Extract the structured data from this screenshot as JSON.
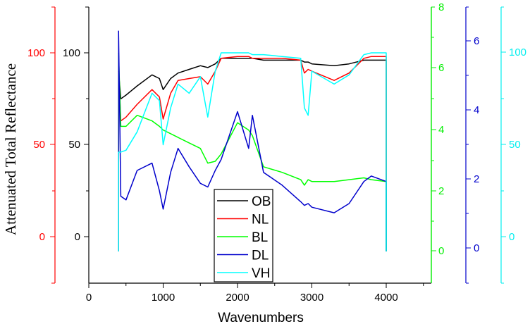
{
  "chart_data": {
    "type": "line",
    "title": "",
    "xlabel": "Wavenumbers",
    "ylabel": "Attenuated  Total Reflectance",
    "xlim": [
      0,
      4500
    ],
    "x_ticks": [
      0,
      1000,
      2000,
      3000,
      4000
    ],
    "grid": false,
    "legend_position": "lower center (inside plot)",
    "axes": [
      {
        "id": "black",
        "color": "#000000",
        "ticks": [
          0,
          50,
          100
        ],
        "ylim": [
          -25,
          125
        ]
      },
      {
        "id": "red",
        "color": "#ff0000",
        "ticks": [
          0,
          50,
          100
        ],
        "ylim": [
          -25,
          125
        ]
      },
      {
        "id": "green",
        "color": "#00ff00",
        "ticks": [
          0,
          2,
          4,
          6,
          8
        ],
        "ylim": [
          -0.7,
          8
        ]
      },
      {
        "id": "blue",
        "color": "#0000cc",
        "ticks": [
          0,
          2,
          4,
          6
        ],
        "ylim": [
          -0.7,
          7
        ]
      },
      {
        "id": "cyan",
        "color": "#00ffff",
        "ticks": [
          0,
          50,
          100
        ],
        "ylim": [
          -15,
          125
        ]
      }
    ],
    "x": [
      400,
      430,
      500,
      650,
      850,
      950,
      1000,
      1100,
      1200,
      1350,
      1500,
      1600,
      1700,
      1780,
      2000,
      2150,
      2200,
      2350,
      2600,
      2850,
      2900,
      2950,
      3000,
      3300,
      3500,
      3700,
      3800,
      4000
    ],
    "series": [
      {
        "name": "OB",
        "color": "#000000",
        "values": [
          90,
          75,
          77,
          82,
          88,
          86,
          80,
          86,
          89,
          91,
          93,
          92,
          94,
          97,
          97,
          97,
          97,
          96,
          96,
          96,
          95,
          95,
          94,
          93,
          94,
          96,
          96,
          96
        ]
      },
      {
        "name": "NL",
        "color": "#ff0000",
        "values": [
          90,
          63,
          65,
          72,
          80,
          76,
          64,
          78,
          85,
          86,
          87,
          83,
          90,
          97,
          98,
          98,
          97,
          97,
          97,
          96,
          89,
          91,
          90,
          85,
          89,
          97,
          98,
          98
        ]
      },
      {
        "name": "BL",
        "color": "#00ff00",
        "values": [
          100,
          60,
          60,
          66,
          63,
          60,
          58,
          56,
          54,
          51,
          48,
          40,
          41,
          45,
          62,
          58,
          55,
          38,
          35,
          31,
          28,
          31,
          30,
          30,
          31,
          32,
          31,
          30
        ]
      },
      {
        "name": "DL",
        "color": "#0000cc",
        "values": [
          112,
          22,
          20,
          36,
          40,
          25,
          15,
          35,
          48,
          38,
          29,
          27,
          36,
          42,
          68,
          48,
          66,
          35,
          28,
          19,
          17,
          18,
          16,
          13,
          18,
          30,
          33,
          30
        ]
      },
      {
        "name": "VH",
        "color": "#00ffff",
        "values": [
          46,
          46,
          47,
          57,
          78,
          74,
          50,
          70,
          83,
          78,
          87,
          65,
          90,
          100,
          100,
          100,
          99,
          99,
          98,
          97,
          70,
          66,
          90,
          83,
          88,
          99,
          100,
          100
        ]
      }
    ]
  },
  "legend": {
    "items": [
      {
        "label": "OB",
        "color": "#000000"
      },
      {
        "label": "NL",
        "color": "#ff0000"
      },
      {
        "label": "BL",
        "color": "#00ff00"
      },
      {
        "label": "DL",
        "color": "#0000cc"
      },
      {
        "label": "VH",
        "color": "#00ffff"
      }
    ]
  },
  "labels": {
    "x_axis": "Wavenumbers",
    "y_axis": "Attenuated  Total Reflectance",
    "x_ticks": [
      "0",
      "1000",
      "2000",
      "3000",
      "4000"
    ],
    "black_ticks": [
      "100",
      "50",
      "0"
    ],
    "red_ticks": [
      "100",
      "50",
      "0"
    ],
    "green_ticks": [
      "8",
      "6",
      "4",
      "2",
      "0"
    ],
    "blue_ticks": [
      "6",
      "4",
      "2",
      "0"
    ],
    "cyan_ticks": [
      "100",
      "50",
      "0"
    ]
  }
}
